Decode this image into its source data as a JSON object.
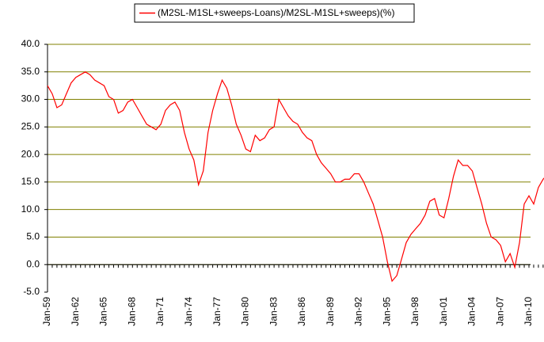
{
  "chart_data": {
    "type": "line",
    "categories": [
      "Jan-59",
      null,
      null,
      null,
      null,
      null,
      "Jan-62",
      null,
      null,
      null,
      null,
      null,
      "Jan-65",
      null,
      null,
      null,
      null,
      null,
      "Jan-68",
      null,
      null,
      null,
      null,
      null,
      "Jan-71",
      null,
      null,
      null,
      null,
      null,
      "Jan-74",
      null,
      null,
      null,
      null,
      null,
      "Jan-77",
      null,
      null,
      null,
      null,
      null,
      "Jan-80",
      null,
      null,
      null,
      null,
      null,
      "Jan-83",
      null,
      null,
      null,
      null,
      null,
      "Jan-86",
      null,
      null,
      null,
      null,
      null,
      "Jan-89",
      null,
      null,
      null,
      null,
      null,
      "Jan-92",
      null,
      null,
      null,
      null,
      null,
      "Jan-95",
      null,
      null,
      null,
      null,
      null,
      "Jan-98",
      null,
      null,
      null,
      null,
      null,
      "Jan-01",
      null,
      null,
      null,
      null,
      null,
      "Jan-04",
      null,
      null,
      null,
      null,
      null,
      "Jan-07",
      null,
      null,
      null,
      null,
      null,
      "Jan-10",
      null,
      null,
      null,
      null,
      null
    ],
    "series": [
      {
        "name": "(M2SL-M1SL+sweeps-Loans)/M2SL-M1SL+sweeps)(%)",
        "color": "#ff0000",
        "values": [
          32.5,
          31,
          28.5,
          29,
          31,
          33,
          34,
          34.5,
          35,
          34.5,
          33.5,
          33,
          32.5,
          30.5,
          30,
          27.5,
          28,
          29.5,
          30,
          28.5,
          27,
          25.5,
          25,
          24.5,
          25.5,
          28,
          29,
          29.5,
          28,
          24,
          21,
          19,
          14.5,
          17,
          24,
          28,
          31,
          33.5,
          32,
          29,
          25.5,
          23.5,
          21,
          20.5,
          23.5,
          22.5,
          23,
          24.5,
          25,
          30,
          28.5,
          27,
          26,
          25.5,
          24,
          23,
          22.5,
          20,
          18.5,
          17.5,
          16.5,
          15,
          15,
          15.5,
          15.5,
          16.5,
          16.5,
          15,
          13,
          11,
          8,
          5,
          0.5,
          -3,
          -2,
          1,
          4,
          5.5,
          6.5,
          7.5,
          9,
          11.5,
          12,
          9,
          8.5,
          12,
          16,
          19,
          18,
          18,
          17,
          14,
          11,
          7.5,
          5,
          4.5,
          3.5,
          0.5,
          2,
          -0.5,
          4,
          11,
          12.5,
          11,
          14,
          15.5,
          16.5,
          16.5
        ]
      }
    ],
    "ylim": [
      -5,
      40
    ],
    "yticks": [
      {
        "value": -5,
        "label": "-5.0"
      },
      {
        "value": 0,
        "label": "0.0"
      },
      {
        "value": 5,
        "label": "5.0"
      },
      {
        "value": 10,
        "label": "10.0"
      },
      {
        "value": 15,
        "label": "15.0"
      },
      {
        "value": 20,
        "label": "20.0"
      },
      {
        "value": 25,
        "label": "25.0"
      },
      {
        "value": 30,
        "label": "30.0"
      },
      {
        "value": 35,
        "label": "35.0"
      },
      {
        "value": 40,
        "label": "40.0"
      }
    ],
    "grid": true,
    "legend": "top"
  }
}
